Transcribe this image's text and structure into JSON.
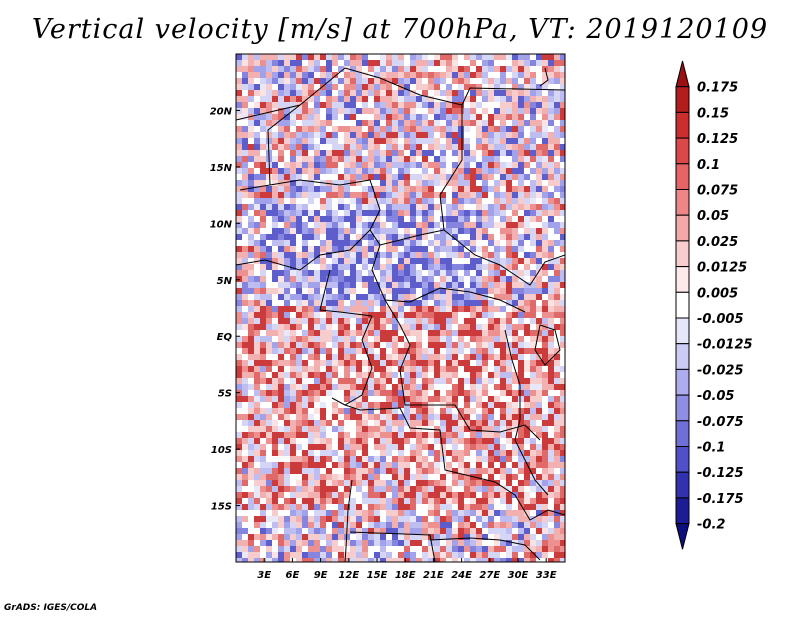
{
  "title": "Vertical velocity [m/s] at 700hPa, VT: 2019120109",
  "footer": "GrADS: IGES/COLA",
  "map": {
    "lat_labels": [
      "20N",
      "15N",
      "10N",
      "5N",
      "EQ",
      "5S",
      "10S",
      "15S"
    ],
    "lat_values": [
      20,
      15,
      10,
      5,
      0,
      -5,
      -10,
      -15
    ],
    "lon_labels": [
      "3E",
      "6E",
      "9E",
      "12E",
      "15E",
      "18E",
      "21E",
      "24E",
      "27E",
      "30E",
      "33E"
    ],
    "lon_values": [
      3,
      6,
      9,
      12,
      15,
      18,
      21,
      24,
      27,
      30,
      33
    ],
    "lon_range": [
      0,
      35
    ],
    "lat_range": [
      -20,
      25
    ]
  },
  "colorbar": {
    "labels": [
      "0.175",
      "0.15",
      "0.125",
      "0.1",
      "0.075",
      "0.05",
      "0.025",
      "0.0125",
      "0.005",
      "-0.005",
      "-0.0125",
      "-0.025",
      "-0.05",
      "-0.075",
      "-0.1",
      "-0.125",
      "-0.175",
      "-0.2"
    ],
    "colors": [
      "#9b1010",
      "#b51c1c",
      "#cc2e2e",
      "#dc4848",
      "#e66464",
      "#ee8686",
      "#f4a8a8",
      "#f9cdcd",
      "#fde9e9",
      "#ffffff",
      "#e6e6fb",
      "#cbcbf5",
      "#acacee",
      "#8e8ee4",
      "#6f6fd8",
      "#5050c8",
      "#3232b0",
      "#1c1c96",
      "#0e0e7e"
    ]
  }
}
